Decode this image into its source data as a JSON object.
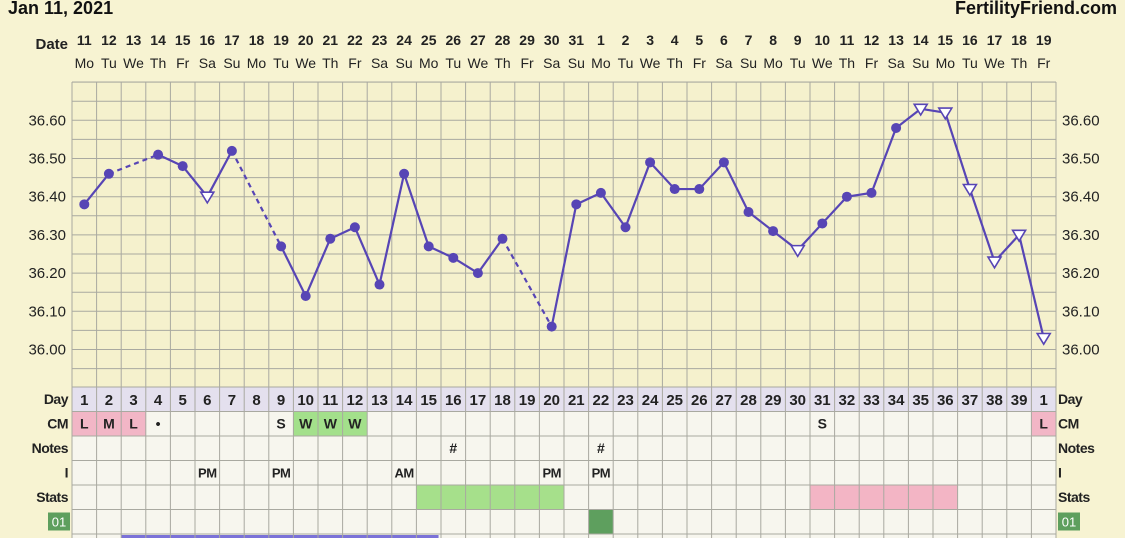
{
  "header": {
    "start_date": "Jan 11, 2021",
    "brand": "FertilityFriend.com"
  },
  "labels": {
    "date": "Date",
    "day": "Day",
    "cm": "CM",
    "notes": "Notes",
    "intercourse": "I",
    "stats": "Stats",
    "box": "01"
  },
  "chart_data": {
    "type": "line",
    "title": "",
    "ylim": [
      35.87,
      36.7
    ],
    "yticks": [
      "36.00",
      "36.10",
      "36.20",
      "36.30",
      "36.40",
      "36.50",
      "36.60"
    ],
    "date_numbers": [
      "11",
      "12",
      "13",
      "14",
      "15",
      "16",
      "17",
      "18",
      "19",
      "20",
      "21",
      "22",
      "23",
      "24",
      "25",
      "26",
      "27",
      "28",
      "29",
      "30",
      "31",
      "1",
      "2",
      "3",
      "4",
      "5",
      "6",
      "7",
      "8",
      "9",
      "10",
      "11",
      "12",
      "13",
      "14",
      "15",
      "16",
      "17",
      "18",
      "19"
    ],
    "weekdays": [
      "Mo",
      "Tu",
      "We",
      "Th",
      "Fr",
      "Sa",
      "Su",
      "Mo",
      "Tu",
      "We",
      "Th",
      "Fr",
      "Sa",
      "Su",
      "Mo",
      "Tu",
      "We",
      "Th",
      "Fr",
      "Sa",
      "Su",
      "Mo",
      "Tu",
      "We",
      "Th",
      "Fr",
      "Sa",
      "Su",
      "Mo",
      "Tu",
      "We",
      "Th",
      "Fr",
      "Sa",
      "Su",
      "Mo",
      "Tu",
      "We",
      "Th",
      "Fr"
    ],
    "cycle_days": [
      "1",
      "2",
      "3",
      "4",
      "5",
      "6",
      "7",
      "8",
      "9",
      "10",
      "11",
      "12",
      "13",
      "14",
      "15",
      "16",
      "17",
      "18",
      "19",
      "20",
      "21",
      "22",
      "23",
      "24",
      "25",
      "26",
      "27",
      "28",
      "29",
      "30",
      "31",
      "32",
      "33",
      "34",
      "35",
      "36",
      "37",
      "38",
      "39",
      "1"
    ],
    "temperatures": [
      36.38,
      36.46,
      null,
      36.51,
      36.48,
      36.4,
      36.52,
      null,
      36.27,
      36.14,
      36.29,
      36.32,
      36.17,
      36.46,
      36.27,
      36.24,
      36.2,
      36.29,
      null,
      36.06,
      36.38,
      36.41,
      36.32,
      36.49,
      36.42,
      36.42,
      36.49,
      36.36,
      36.31,
      36.26,
      36.33,
      36.4,
      36.41,
      36.58,
      36.63,
      36.62,
      36.42,
      36.23,
      36.3,
      36.03
    ],
    "point_kinds": [
      "dot",
      "dot",
      "none",
      "dot",
      "dot",
      "open",
      "dot",
      "none",
      "dot",
      "dot",
      "dot",
      "dot",
      "dot",
      "dot",
      "dot",
      "dot",
      "dot",
      "dot",
      "none",
      "dot",
      "dot",
      "dot",
      "dot",
      "dot",
      "dot",
      "dot",
      "dot",
      "dot",
      "dot",
      "open",
      "dot",
      "dot",
      "dot",
      "dot",
      "open",
      "open",
      "open",
      "open",
      "open",
      "open"
    ],
    "dashed_segments": [
      [
        1,
        3
      ],
      [
        6,
        8
      ],
      [
        17,
        19
      ]
    ],
    "cm": [
      [
        "0",
        "L"
      ],
      [
        "1",
        "M"
      ],
      [
        "2",
        "L"
      ],
      [
        "3",
        "•"
      ],
      [
        "8",
        "S"
      ],
      [
        "9",
        "W"
      ],
      [
        "10",
        "W"
      ],
      [
        "11",
        "W"
      ],
      [
        "30",
        "S"
      ],
      [
        "39",
        "L"
      ]
    ],
    "notes": [
      [
        "15",
        "#"
      ],
      [
        "21",
        "#"
      ]
    ],
    "intercourse": [
      [
        "5",
        "PM"
      ],
      [
        "8",
        "PM"
      ],
      [
        "13",
        "AM"
      ],
      [
        "19",
        "PM"
      ],
      [
        "21",
        "PM"
      ]
    ],
    "stats_green": [
      14,
      19
    ],
    "stats_pink": [
      30,
      35
    ],
    "box_cell": 21
  },
  "colors": {
    "line": "#5745b5",
    "grid": "#a9a9a0",
    "cm_pink": "#f2b6c6",
    "cm_green": "#a3e08b",
    "stats_green": "#a6e08b",
    "stats_pink": "#f3b5c5",
    "box_green": "#5e9f5e"
  }
}
